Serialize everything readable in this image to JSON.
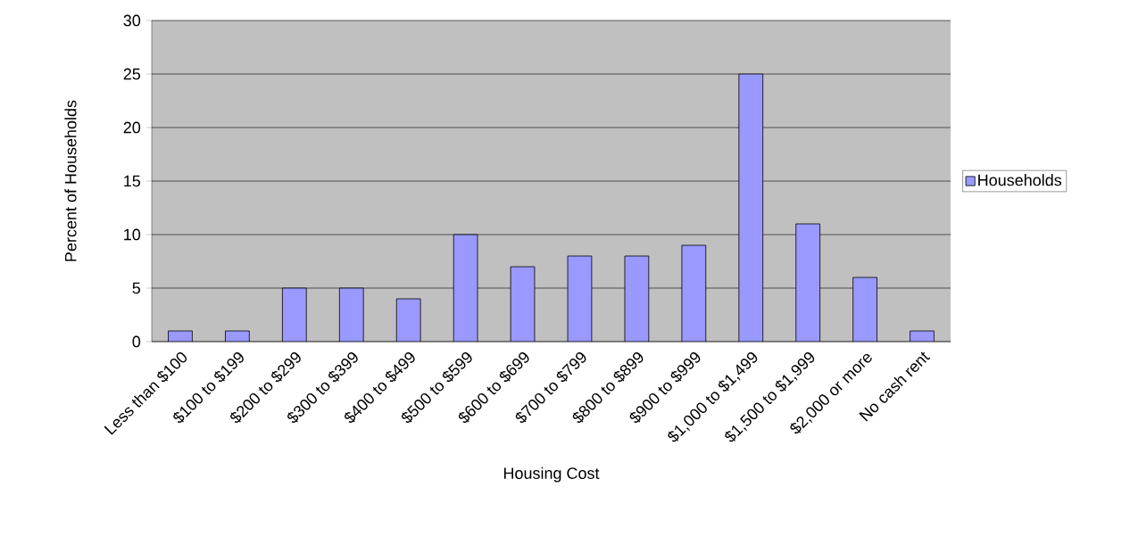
{
  "chart_data": {
    "type": "bar",
    "xlabel": "Housing Cost",
    "ylabel": "Percent of Households",
    "categories": [
      "Less than $100",
      "$100 to $199",
      "$200 to $299",
      "$300 to $399",
      "$400 to $499",
      "$500 to $599",
      "$600 to $699",
      "$700 to $799",
      "$800 to $899",
      "$900 to $999",
      "$1,000 to $1,499",
      "$1,500 to $1,999",
      "$2,000 or more",
      "No cash rent"
    ],
    "series": [
      {
        "name": "Households",
        "color": "#9999ff",
        "values": [
          1,
          1,
          5,
          5,
          4,
          10,
          7,
          8,
          8,
          9,
          25,
          11,
          6,
          1
        ]
      }
    ],
    "ylim": [
      0,
      30
    ],
    "yticks": [
      0,
      5,
      10,
      15,
      20,
      25,
      30
    ],
    "grid": "y",
    "legend": "right"
  }
}
